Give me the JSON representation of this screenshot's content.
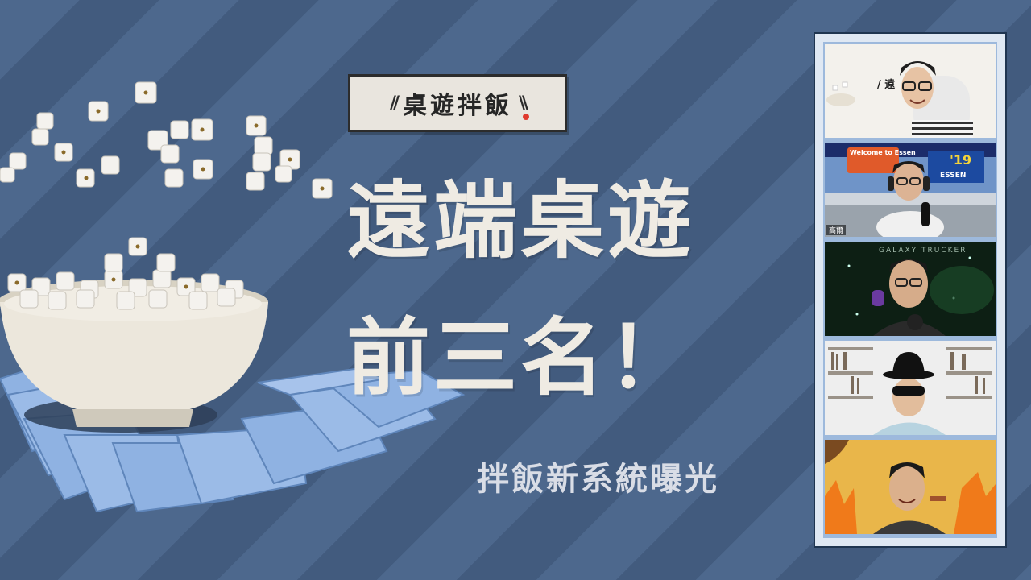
{
  "logo": {
    "text": "桌遊拌飯",
    "slash_left": "//",
    "slash_right": "\\\\",
    "accent_color": "#e03a2e"
  },
  "headline": {
    "line1": "遠端桌遊",
    "line2": "前三名！"
  },
  "subtitle": "拌飯新系統曝光",
  "colors": {
    "background": "#4a6387",
    "headline": "#efebe3",
    "card": "#8fb2e2"
  },
  "video_participants": [
    {
      "name": "",
      "background": "slide",
      "slide_text": "/ 遠"
    },
    {
      "name": "高爾",
      "background": "convention",
      "sign_text": "Welcome to Essen",
      "year_text": "'19",
      "city_text": "ESSEN"
    },
    {
      "name": "",
      "background": "space",
      "title_text": "GALAXY TRUCKER"
    },
    {
      "name": "",
      "background": "bookshelf"
    },
    {
      "name": "",
      "background": "fire-meme"
    }
  ]
}
